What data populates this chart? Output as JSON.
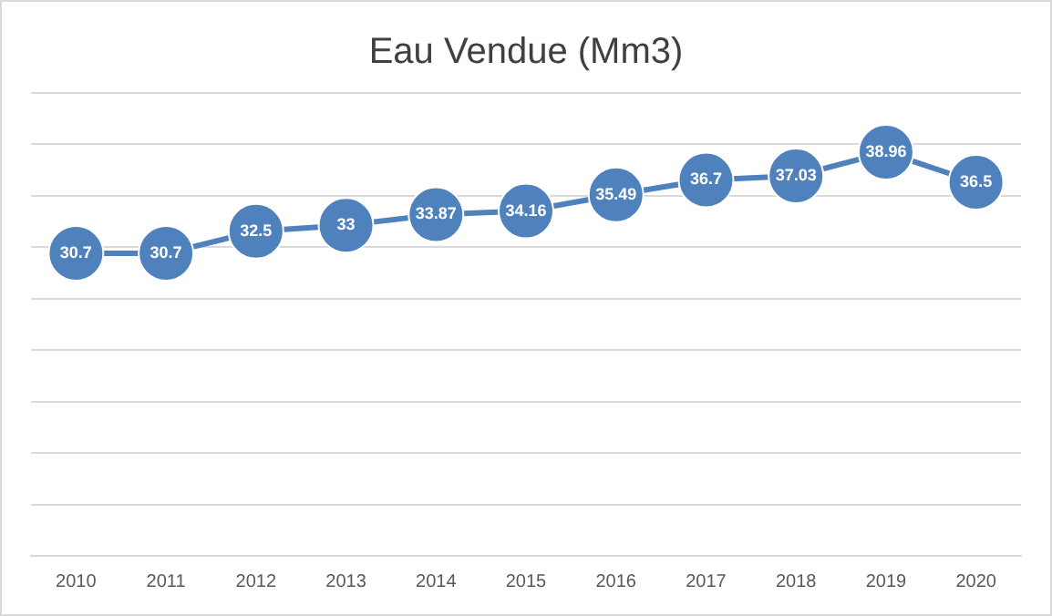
{
  "chart_data": {
    "type": "line",
    "title": "Eau Vendue (Mm3)",
    "categories": [
      "2010",
      "2011",
      "2012",
      "2013",
      "2014",
      "2015",
      "2016",
      "2017",
      "2018",
      "2019",
      "2020"
    ],
    "series": [
      {
        "color": "#4f81bd",
        "values": [
          30.7,
          30.7,
          32.5,
          33,
          33.87,
          34.16,
          35.49,
          36.7,
          37.03,
          38.96,
          36.5
        ]
      }
    ],
    "ylim": [
      6,
      43.8
    ],
    "yticks": [
      {
        "value": 10.2,
        "label": null
      },
      {
        "value": 14.4,
        "label": null
      },
      {
        "value": 18.6,
        "label": null
      },
      {
        "value": 22.8,
        "label": null
      },
      {
        "value": 27,
        "label": null
      },
      {
        "value": 31.2,
        "label": null
      },
      {
        "value": 35.4,
        "label": null
      },
      {
        "value": 39.6,
        "label": null
      },
      {
        "value": 43.8,
        "label": null
      }
    ],
    "grid": "y",
    "tick_labels": "x",
    "marker": "circle",
    "line_style": "solid",
    "legend": false,
    "data_labels": true
  }
}
